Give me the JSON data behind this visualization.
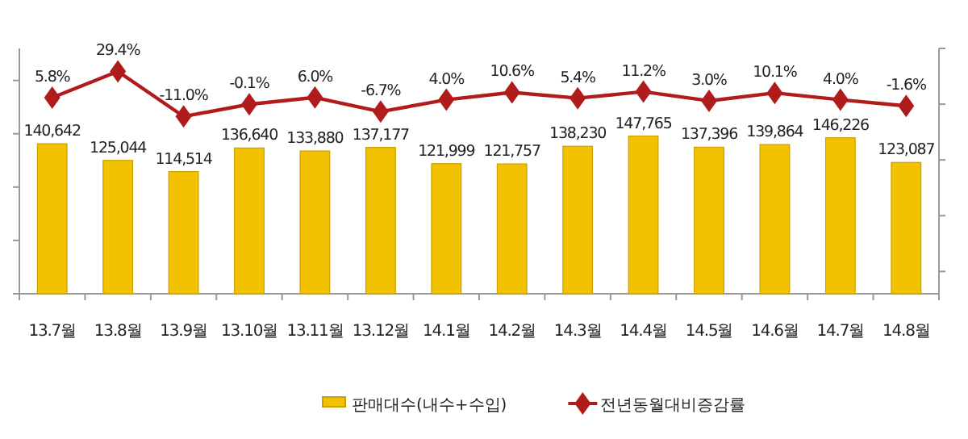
{
  "chart_data": {
    "type": "bar",
    "categories": [
      "13.7월",
      "13.8월",
      "13.9월",
      "13.10월",
      "13.11월",
      "13.12월",
      "14.1월",
      "14.2월",
      "14.3월",
      "14.4월",
      "14.5월",
      "14.6월",
      "14.7월",
      "14.8월"
    ],
    "series": [
      {
        "name": "판매대수(내수+수입)",
        "color": "#f2c200",
        "values": [
          140642,
          125044,
          114514,
          136640,
          133880,
          137177,
          121999,
          121757,
          138230,
          147765,
          137396,
          139864,
          146226,
          123087
        ],
        "value_labels": [
          "140,642",
          "125,044",
          "114,514",
          "136,640",
          "133,880",
          "137,177",
          "121,999",
          "121,757",
          "138,230",
          "147,765",
          "137,396",
          "139,864",
          "146,226",
          "123,087"
        ]
      },
      {
        "name": "전년동월대비증감률",
        "type": "line",
        "axis": "y2",
        "color": "#b01c1c",
        "marker": "diamond",
        "values": [
          5.8,
          29.4,
          -11.0,
          -0.1,
          6.0,
          -6.7,
          4.0,
          10.6,
          5.4,
          11.2,
          3.0,
          10.1,
          4.0,
          -1.6
        ],
        "value_labels": [
          "5.8%",
          "29.4%",
          "-11.0%",
          "-0.1%",
          "6.0%",
          "-6.7%",
          "4.0%",
          "10.6%",
          "5.4%",
          "11.2%",
          "3.0%",
          "10.1%",
          "4.0%",
          "-1.6%"
        ]
      }
    ],
    "ylim": [
      0,
      230000
    ],
    "yticks": [
      {
        "value": 0,
        "label": null
      },
      {
        "value": 50000,
        "label": null
      },
      {
        "value": 100000,
        "label": null
      },
      {
        "value": 150000,
        "label": null
      },
      {
        "value": 200000,
        "label": null
      }
    ],
    "y2lim": [
      -170,
      50
    ],
    "y2ticks": [
      {
        "value": -150,
        "label": null
      },
      {
        "value": -100,
        "label": null
      },
      {
        "value": -50,
        "label": null
      },
      {
        "value": 0,
        "label": null
      },
      {
        "value": 50,
        "label": null
      }
    ],
    "tick_labels": "x",
    "legend": "bottom",
    "grid": false
  }
}
